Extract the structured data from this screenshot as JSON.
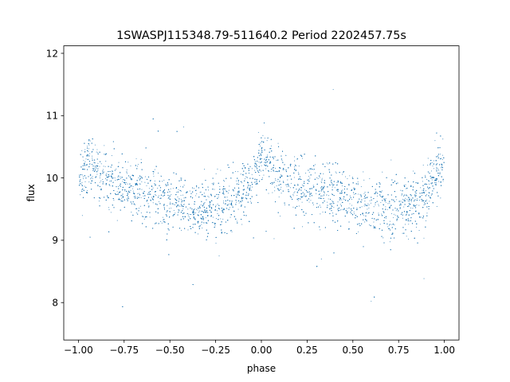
{
  "chart_data": {
    "type": "scatter",
    "title": "1SWASPJ115348.79-511640.2 Period 2202457.75s",
    "xlabel": "phase",
    "ylabel": "flux",
    "xlim": [
      -1.08,
      1.08
    ],
    "ylim": [
      7.4,
      12.12
    ],
    "xticks": [
      -1.0,
      -0.75,
      -0.5,
      -0.25,
      0.0,
      0.25,
      0.5,
      0.75,
      1.0
    ],
    "xtick_labels": [
      "−1.00",
      "−0.75",
      "−0.50",
      "−0.25",
      "0.00",
      "0.25",
      "0.50",
      "0.75",
      "1.00"
    ],
    "yticks": [
      8,
      9,
      10,
      11,
      12
    ],
    "ytick_labels": [
      "8",
      "9",
      "10",
      "11",
      "12"
    ],
    "grid": false,
    "marker_color": "#1f77b4",
    "series": [
      {
        "x": [
          -1.0,
          -0.95,
          -0.9,
          -0.85,
          -0.8,
          -0.75,
          -0.7,
          -0.65,
          -0.6,
          -0.55,
          -0.5,
          -0.45,
          -0.4,
          -0.35,
          -0.3,
          -0.25,
          -0.2,
          -0.15,
          -0.1,
          -0.05,
          0.0,
          0.05,
          0.1,
          0.15,
          0.2,
          0.25,
          0.3,
          0.35,
          0.4,
          0.45,
          0.5,
          0.55,
          0.6,
          0.65,
          0.7,
          0.75,
          0.8,
          0.85,
          0.9,
          0.95,
          1.0
        ],
        "y": [
          9.9,
          10.3,
          10.15,
          9.95,
          9.9,
          9.85,
          9.8,
          9.75,
          9.7,
          9.65,
          9.6,
          9.6,
          9.55,
          9.5,
          9.5,
          9.55,
          9.6,
          9.7,
          9.8,
          10.0,
          10.25,
          10.2,
          10.0,
          9.95,
          9.9,
          9.85,
          9.85,
          9.8,
          9.75,
          9.7,
          9.65,
          9.6,
          9.55,
          9.55,
          9.5,
          9.5,
          9.55,
          9.6,
          9.75,
          10.0,
          10.3
        ]
      }
    ]
  }
}
